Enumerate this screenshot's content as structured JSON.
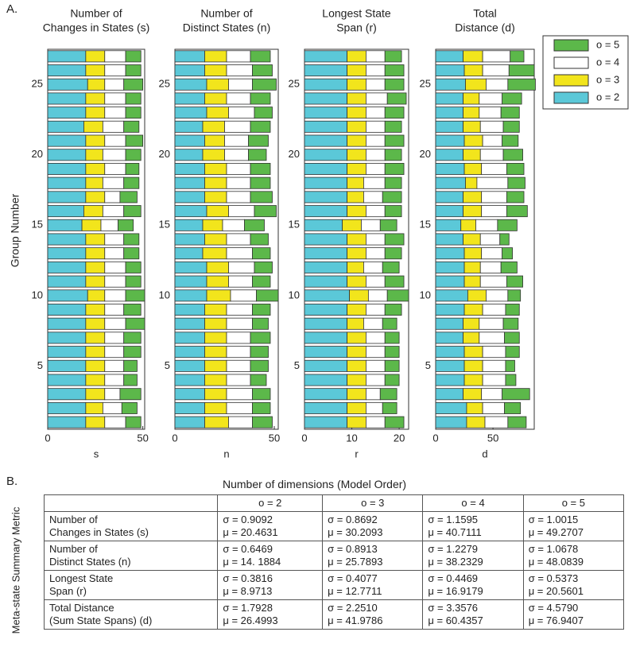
{
  "panel_a_label": "A.",
  "panel_b_label": "B.",
  "y_axis_label": "Group Number",
  "chart_data": [
    {
      "type": "stacked_barh",
      "title": [
        "Number of",
        "Changes in States (s)"
      ],
      "x_label": "s",
      "xlim": [
        0,
        51
      ],
      "xticks": [
        0,
        50
      ],
      "ylim": [
        0.5,
        27.5
      ],
      "yticks": [
        5,
        10,
        15,
        20,
        25
      ],
      "series": [
        {
          "name": "o = 2",
          "color": "#5bc8d8",
          "values": [
            20,
            20,
            20,
            20,
            20,
            20,
            20,
            20,
            20,
            21,
            20,
            20,
            20,
            20,
            18,
            19,
            20,
            20,
            20,
            20,
            20,
            19,
            20,
            20,
            21,
            20,
            20
          ]
        },
        {
          "name": "o = 3",
          "color": "#f2e51c",
          "values": [
            10,
            9,
            10,
            10,
            10,
            10,
            10,
            10,
            10,
            9,
            10,
            10,
            10,
            10,
            10,
            10,
            10,
            9,
            10,
            9,
            10,
            10,
            10,
            10,
            9,
            10,
            10
          ]
        },
        {
          "name": "o = 4",
          "color": "#ffffff",
          "values": [
            11,
            10,
            8,
            10,
            10,
            10,
            10,
            11,
            10,
            11,
            11,
            11,
            10,
            10,
            9,
            11,
            8,
            11,
            11,
            12,
            11,
            11,
            11,
            11,
            10,
            11,
            11
          ]
        },
        {
          "name": "o = 5",
          "color": "#5cb84a",
          "values": [
            8,
            8,
            11,
            7,
            7,
            9,
            9,
            10,
            9,
            10,
            8,
            8,
            8,
            8,
            8,
            9,
            9,
            8,
            7,
            8,
            9,
            8,
            8,
            8,
            10,
            8,
            8
          ]
        }
      ]
    },
    {
      "type": "stacked_barh",
      "title": [
        "Number of",
        "Distinct States (n)"
      ],
      "x_label": "n",
      "xlim": [
        0,
        52
      ],
      "xticks": [
        0,
        50
      ],
      "ylim": [
        0.5,
        27.5
      ],
      "yticks": [
        5,
        10,
        15,
        20,
        25
      ],
      "series": [
        {
          "name": "o = 2",
          "color": "#5bc8d8",
          "values": [
            15,
            15,
            15,
            15,
            15,
            15,
            15,
            15,
            15,
            16,
            16,
            16,
            14,
            15,
            14,
            16,
            15,
            15,
            15,
            14,
            15,
            14,
            16,
            15,
            16,
            15,
            15
          ]
        },
        {
          "name": "o = 3",
          "color": "#f2e51c",
          "values": [
            12,
            11,
            11,
            11,
            11,
            11,
            11,
            11,
            11,
            12,
            11,
            11,
            12,
            11,
            10,
            11,
            11,
            11,
            11,
            11,
            10,
            11,
            11,
            11,
            11,
            11,
            11
          ]
        },
        {
          "name": "o = 4",
          "color": "#ffffff",
          "values": [
            12,
            13,
            13,
            12,
            12,
            12,
            12,
            13,
            13,
            13,
            12,
            13,
            13,
            12,
            11,
            13,
            12,
            12,
            12,
            12,
            12,
            13,
            13,
            12,
            12,
            13,
            12
          ]
        },
        {
          "name": "o = 5",
          "color": "#5cb84a",
          "values": [
            10,
            9,
            9,
            8,
            9,
            9,
            10,
            8,
            9,
            11,
            9,
            9,
            9,
            9,
            10,
            11,
            11,
            10,
            10,
            9,
            10,
            10,
            9,
            10,
            12,
            10,
            10
          ]
        }
      ]
    },
    {
      "type": "stacked_barh",
      "title": [
        "Longest State",
        "Span (r)"
      ],
      "x_label": "r",
      "xlim": [
        0,
        22
      ],
      "xticks": [
        0,
        10,
        20
      ],
      "ylim": [
        0.5,
        27.5
      ],
      "yticks": [
        5,
        10,
        15,
        20,
        25
      ],
      "series": [
        {
          "name": "o = 2",
          "color": "#5bc8d8",
          "values": [
            9,
            9,
            9,
            9,
            9,
            9,
            9,
            9,
            9,
            9.5,
            9,
            9,
            9,
            9,
            8,
            9,
            9,
            9,
            9,
            9,
            9,
            9,
            9,
            9,
            9,
            9,
            9
          ]
        },
        {
          "name": "o = 3",
          "color": "#f2e51c",
          "values": [
            4,
            4,
            4,
            4,
            4,
            4,
            4,
            3.5,
            4,
            4,
            4,
            3.5,
            4,
            4,
            4,
            4,
            3.5,
            3.5,
            4,
            4,
            4,
            4,
            4,
            4,
            4,
            4,
            4
          ]
        },
        {
          "name": "o = 4",
          "color": "#ffffff",
          "values": [
            4,
            3.5,
            3,
            4,
            4,
            4,
            4,
            4,
            4,
            4,
            4,
            4,
            4,
            4,
            4,
            4,
            4,
            4.5,
            4,
            4,
            4,
            4,
            4,
            4.5,
            4,
            4,
            4
          ]
        },
        {
          "name": "o = 5",
          "color": "#5cb84a",
          "values": [
            4,
            3,
            3.5,
            3,
            3,
            3,
            3,
            3,
            3.5,
            4.5,
            4,
            3.5,
            3.5,
            4,
            3.5,
            3.5,
            4,
            3.5,
            4,
            3.5,
            4,
            3.5,
            4,
            4,
            4,
            4,
            3.5
          ]
        }
      ]
    },
    {
      "type": "stacked_barh",
      "title": [
        "Total",
        "Distance (d)"
      ],
      "x_label": "d",
      "xlim": [
        0,
        86
      ],
      "xticks": [
        0,
        50
      ],
      "ylim": [
        0.5,
        27.5
      ],
      "yticks": [
        5,
        10,
        15,
        20,
        25
      ],
      "series": [
        {
          "name": "o = 2",
          "color": "#5bc8d8",
          "values": [
            27,
            27,
            24,
            25,
            25,
            25,
            24,
            24,
            25,
            28,
            25,
            25,
            25,
            24,
            22,
            24,
            24,
            26,
            25,
            24,
            25,
            24,
            24,
            24,
            26,
            25,
            24
          ]
        },
        {
          "name": "o = 3",
          "color": "#f2e51c",
          "values": [
            16,
            14,
            16,
            16,
            16,
            16,
            14,
            14,
            16,
            16,
            14,
            14,
            15,
            15,
            13,
            16,
            16,
            10,
            15,
            15,
            16,
            15,
            14,
            14,
            18,
            16,
            17
          ]
        },
        {
          "name": "o = 4",
          "color": "#ffffff",
          "values": [
            20,
            19,
            18,
            20,
            20,
            20,
            22,
            21,
            20,
            19,
            23,
            18,
            18,
            17,
            19,
            22,
            22,
            27,
            22,
            20,
            17,
            20,
            19,
            20,
            19,
            23,
            24
          ]
        },
        {
          "name": "o = 5",
          "color": "#5cb84a",
          "values": [
            16,
            14,
            24,
            9,
            8,
            12,
            13,
            13,
            12,
            11,
            14,
            14,
            9,
            8,
            17,
            18,
            15,
            15,
            15,
            17,
            14,
            14,
            16,
            17,
            24,
            22,
            12
          ]
        }
      ]
    }
  ],
  "table": {
    "caption": "Number of dimensions (Model Order)",
    "side_label": "Meta-state Summary Metric",
    "columns": [
      "o = 2",
      "o = 3",
      "o = 4",
      "o = 5"
    ],
    "rows": [
      {
        "label": [
          "Number of",
          "Changes in States (s)"
        ],
        "cells": [
          [
            "σ = 0.9092",
            "μ = 20.4631"
          ],
          [
            "σ = 0.8692",
            "μ = 30.2093"
          ],
          [
            "σ = 1.1595",
            "μ = 40.7111"
          ],
          [
            "σ = 1.0015",
            "μ = 49.2707"
          ]
        ]
      },
      {
        "label": [
          "Number of",
          "Distinct States (n)"
        ],
        "cells": [
          [
            "σ = 0.6469",
            "μ = 14. 1884"
          ],
          [
            "σ = 0.8913",
            "μ = 25.7893"
          ],
          [
            "σ = 1.2279",
            "μ = 38.2329"
          ],
          [
            "σ = 1.0678",
            "μ = 48.0839"
          ]
        ]
      },
      {
        "label": [
          "Longest State",
          "Span (r)"
        ],
        "cells": [
          [
            "σ = 0.3816",
            "μ = 8.9713"
          ],
          [
            "σ = 0.4077",
            "μ = 12.7711"
          ],
          [
            "σ = 0.4469",
            "μ = 16.9179"
          ],
          [
            "σ = 0.5373",
            "μ = 20.5601"
          ]
        ]
      },
      {
        "label": [
          "Total Distance",
          "(Sum State Spans) (d)"
        ],
        "cells": [
          [
            "σ = 1.7928",
            "μ = 26.4993"
          ],
          [
            "σ = 2.2510",
            "μ = 41.9786"
          ],
          [
            "σ = 3.3576",
            "μ = 60.4357"
          ],
          [
            "σ = 4.5790",
            "μ = 76.9407"
          ]
        ]
      }
    ]
  }
}
